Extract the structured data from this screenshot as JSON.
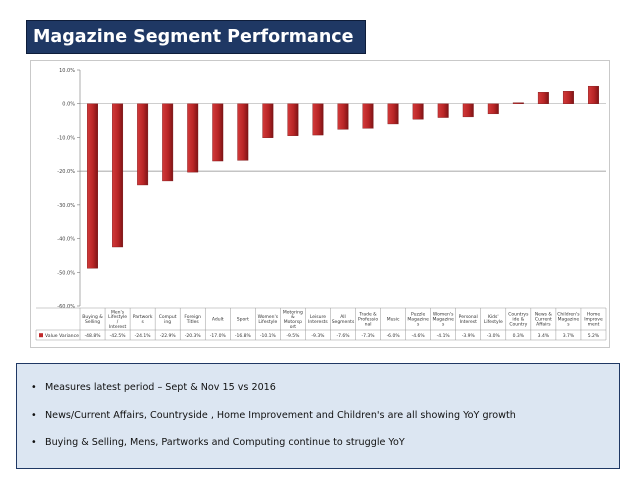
{
  "slide": {
    "title": "Magazine Segment Performance",
    "bullets": [
      "Measures latest period – Sept & Nov 15 vs 2016",
      "News/Current Affairs, Countryside , Home Improvement and Children's are all showing YoY growth",
      "Buying & Selling, Mens, Partworks and Computing continue to struggle YoY"
    ]
  },
  "colors": {
    "title_bg": "#1f3864",
    "bar": "#c0282a",
    "bar_dark": "#8e1a1c",
    "notes_bg": "#dce6f2"
  },
  "chart_data": {
    "type": "bar",
    "title": "",
    "xlabel": "",
    "ylabel": "",
    "ylim": [
      -60,
      10
    ],
    "yticks": [
      10,
      0,
      -10,
      -20,
      -30,
      -40,
      -50,
      -60
    ],
    "ytick_labels": [
      "10.0%",
      "0.0%",
      "-10.0%",
      "-20.0%",
      "-30.0%",
      "-40.0%",
      "-50.0%",
      "-60.0%"
    ],
    "categories": [
      "Buying & Selling",
      "Men's Lifestyle / Interest",
      "Partwork s",
      "Comput ing",
      "Foreign Titles",
      "Adult",
      "Sport",
      "Women's Lifestyle",
      "Motoring & Motorsp ort",
      "Leisure Interests",
      "All Segments",
      "Trade & Professio nal",
      "Music",
      "Puzzle Magazine s",
      "Women's Magazine s",
      "Personal Interest",
      "Kids' Lifestyle",
      "Countrys ide & Country",
      "News & Current Affairs",
      "Children's Magazine s",
      "Home Improve ment"
    ],
    "series": [
      {
        "name": "Value Variance",
        "values": [
          -48.8,
          -42.5,
          -24.1,
          -22.9,
          -20.3,
          -17.0,
          -16.8,
          -10.1,
          -9.5,
          -9.3,
          -7.6,
          -7.3,
          -6.0,
          -4.6,
          -4.1,
          -3.9,
          -3.0,
          0.3,
          3.4,
          3.7,
          5.2
        ],
        "value_labels": [
          "-48.8%",
          "-42.5%",
          "-24.1%",
          "-22.9%",
          "-20.3%",
          "-17.0%",
          "-16.8%",
          "-10.1%",
          "-9.5%",
          "-9.3%",
          "-7.6%",
          "-7.3%",
          "-6.0%",
          "-4.6%",
          "-4.1%",
          "-3.9%",
          "-3.0%",
          "0.3%",
          "3.4%",
          "3.7%",
          "5.2%"
        ]
      }
    ],
    "legend": "bottom-left",
    "grid": true
  }
}
